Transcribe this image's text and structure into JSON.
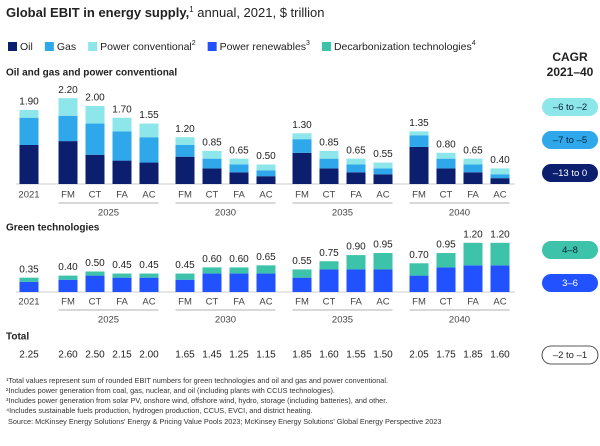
{
  "chart_data": {
    "type": "stacked_bar",
    "title": "Global EBIT in energy supply,",
    "title_note": "1",
    "title_suffix": " annual, 2021, $ trillion",
    "cagr_title": "CAGR",
    "cagr_period": "2021–40",
    "categories": [
      "2021",
      "FM",
      "CT",
      "FA",
      "AC",
      "FM",
      "CT",
      "FA",
      "AC",
      "FM",
      "CT",
      "FA",
      "AC",
      "FM",
      "CT",
      "FA",
      "AC"
    ],
    "group_labels": [
      "2025",
      "2030",
      "2035",
      "2040"
    ],
    "panels": [
      {
        "title": "Oil and gas and power conventional",
        "series": [
          {
            "name": "Oil",
            "color": "#0b1f6e",
            "cagr": "–13 to 0",
            "values": [
              1.0,
              1.1,
              0.75,
              0.6,
              0.55,
              0.7,
              0.4,
              0.3,
              0.2,
              0.8,
              0.4,
              0.3,
              0.25,
              0.95,
              0.4,
              0.3,
              0.15
            ]
          },
          {
            "name": "Gas",
            "color": "#2ea8ea",
            "cagr": "–7 to –5",
            "values": [
              0.7,
              0.65,
              0.8,
              0.75,
              0.65,
              0.3,
              0.25,
              0.2,
              0.15,
              0.35,
              0.25,
              0.2,
              0.15,
              0.3,
              0.25,
              0.2,
              0.1
            ]
          },
          {
            "name": "Power conventional",
            "note": "2",
            "color": "#8de6ea",
            "cagr": "–6 to –2",
            "values": [
              0.2,
              0.45,
              0.45,
              0.35,
              0.35,
              0.2,
              0.2,
              0.15,
              0.15,
              0.15,
              0.2,
              0.15,
              0.15,
              0.1,
              0.15,
              0.15,
              0.15
            ]
          }
        ],
        "totals": {
          "values": [
            1.9,
            2.2,
            2.0,
            1.7,
            1.55,
            1.2,
            0.85,
            0.65,
            0.5,
            1.3,
            0.85,
            0.65,
            0.55,
            1.35,
            0.8,
            0.65,
            0.4
          ],
          "value_labels": [
            "1.90",
            "2.20",
            "2.00",
            "1.70",
            "1.55",
            "1.20",
            "0.85",
            "0.65",
            "0.50",
            "1.30",
            "0.85",
            "0.65",
            "0.55",
            "1.35",
            "0.80",
            "0.65",
            "0.40"
          ]
        }
      },
      {
        "title": "Green technologies",
        "series": [
          {
            "name": "Power renewables",
            "note": "3",
            "color": "#2251ff",
            "cagr": "3–6",
            "values": [
              0.25,
              0.3,
              0.4,
              0.35,
              0.35,
              0.3,
              0.45,
              0.45,
              0.45,
              0.35,
              0.55,
              0.55,
              0.55,
              0.4,
              0.6,
              0.65,
              0.65
            ]
          },
          {
            "name": "Decarbonization technologies",
            "note": "4",
            "color": "#3cc3a9",
            "cagr": "4–8",
            "values": [
              0.1,
              0.1,
              0.1,
              0.1,
              0.1,
              0.15,
              0.15,
              0.15,
              0.2,
              0.2,
              0.2,
              0.35,
              0.4,
              0.3,
              0.35,
              0.55,
              0.55
            ]
          }
        ],
        "totals": {
          "values": [
            0.35,
            0.4,
            0.5,
            0.45,
            0.45,
            0.45,
            0.6,
            0.6,
            0.65,
            0.55,
            0.75,
            0.9,
            0.95,
            0.7,
            0.95,
            1.2,
            1.2
          ],
          "value_labels": [
            "0.35",
            "0.40",
            "0.50",
            "0.45",
            "0.45",
            "0.45",
            "0.60",
            "0.60",
            "0.65",
            "0.55",
            "0.75",
            "0.90",
            "0.95",
            "0.70",
            "0.95",
            "1.20",
            "1.20"
          ]
        }
      }
    ],
    "total": {
      "title": "Total",
      "cagr": "–2 to –1",
      "values": [
        2.25,
        2.6,
        2.5,
        2.15,
        2.0,
        1.65,
        1.45,
        1.25,
        1.15,
        1.85,
        1.6,
        1.55,
        1.5,
        2.05,
        1.75,
        1.85,
        1.6
      ],
      "value_labels": [
        "2.25",
        "2.60",
        "2.50",
        "2.15",
        "2.00",
        "1.65",
        "1.45",
        "1.25",
        "1.15",
        "1.85",
        "1.60",
        "1.55",
        "1.50",
        "2.05",
        "1.75",
        "1.85",
        "1.60"
      ]
    },
    "footnotes": [
      "¹Total values represent sum of rounded EBIT numbers for green technologies and oil and gas and power conventional.",
      "²Includes power generation from coal, gas, nuclear, and oil (including plants with CCUS technologies).",
      "³Includes power generation from solar PV, onshore wind, offshore wind, hydro, storage (including batteries), and other.",
      "⁴Includes sustainable fuels production, hydrogen production, CCUS, EVCI, and district heating."
    ],
    "source": "Source: McKinsey Energy Solutions' Energy & Pricing Value Pools 2023; McKinsey Energy Solutions' Global Energy Perspective 2023"
  }
}
